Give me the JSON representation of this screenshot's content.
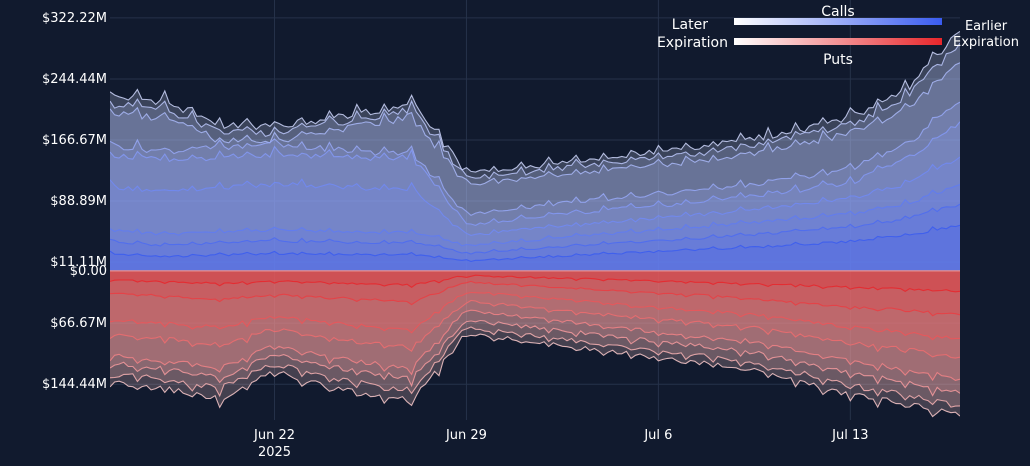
{
  "chart_data": {
    "type": "area",
    "colors": {
      "background": "#111a2e",
      "grid": "#26324a",
      "text": "#ffffff",
      "calls_late": "#ffffff",
      "calls_early": "#3a5cf0",
      "puts_late": "#ffffff",
      "puts_early": "#e8262b"
    },
    "legend": {
      "position": "top-right",
      "calls_title": "Calls",
      "puts_title": "Puts",
      "left_label": [
        "Later",
        "Expiration"
      ],
      "right_label": [
        "Earlier",
        "Expiration"
      ]
    },
    "y_ticks": [
      {
        "label": "$322.22M",
        "value": 322.22
      },
      {
        "label": "$244.44M",
        "value": 244.44
      },
      {
        "label": "$166.67M",
        "value": 166.67
      },
      {
        "label": "$88.89M",
        "value": 88.89
      },
      {
        "label": "$11.11M",
        "value": 11.11
      },
      {
        "label": "$0.00",
        "value": 0
      },
      {
        "label": "$66.67M",
        "value": -66.67
      },
      {
        "label": "$144.44M",
        "value": -144.44
      }
    ],
    "ylim": [
      -190,
      345
    ],
    "xlim": [
      "2025-06-16",
      "2025-07-17"
    ],
    "x_ticks": [
      {
        "label": "Jun 22",
        "sublabel": "2025",
        "date": "2025-06-22"
      },
      {
        "label": "Jun 29",
        "sublabel": "",
        "date": "2025-06-29"
      },
      {
        "label": "Jul 6",
        "sublabel": "",
        "date": "2025-07-06"
      },
      {
        "label": "Jul 13",
        "sublabel": "",
        "date": "2025-07-13"
      }
    ],
    "x": [
      "2025-06-16",
      "2025-06-18",
      "2025-06-20",
      "2025-06-22",
      "2025-06-24",
      "2025-06-26",
      "2025-06-27",
      "2025-06-29",
      "2025-07-01",
      "2025-07-03",
      "2025-07-05",
      "2025-07-07",
      "2025-07-09",
      "2025-07-11",
      "2025-07-13",
      "2025-07-15",
      "2025-07-17"
    ],
    "series": [
      {
        "group": "calls",
        "values": [
          222,
          216,
          186,
          183,
          194,
          206,
          214,
          125,
          131,
          140,
          148,
          155,
          165,
          178,
          195,
          228,
          305
        ]
      },
      {
        "group": "calls",
        "values": [
          212,
          206,
          176,
          175,
          187,
          198,
          205,
          118,
          124,
          133,
          140,
          147,
          157,
          170,
          186,
          218,
          290
        ]
      },
      {
        "group": "calls",
        "values": [
          200,
          195,
          166,
          165,
          178,
          190,
          196,
          110,
          116,
          124,
          131,
          138,
          147,
          160,
          175,
          205,
          265
        ]
      },
      {
        "group": "calls",
        "values": [
          160,
          152,
          157,
          160,
          155,
          150,
          150,
          72,
          80,
          88,
          95,
          100,
          108,
          118,
          130,
          160,
          215
        ]
      },
      {
        "group": "calls",
        "values": [
          148,
          140,
          145,
          148,
          145,
          142,
          145,
          58,
          66,
          74,
          80,
          86,
          93,
          102,
          112,
          140,
          190
        ]
      },
      {
        "group": "calls",
        "values": [
          108,
          100,
          106,
          110,
          108,
          104,
          105,
          45,
          52,
          58,
          64,
          70,
          76,
          84,
          92,
          110,
          145
        ]
      },
      {
        "group": "calls",
        "values": [
          52,
          46,
          50,
          52,
          50,
          48,
          50,
          32,
          38,
          44,
          49,
          54,
          60,
          66,
          72,
          85,
          110
        ]
      },
      {
        "group": "calls",
        "values": [
          38,
          32,
          36,
          38,
          37,
          35,
          37,
          22,
          27,
          32,
          36,
          40,
          45,
          50,
          55,
          66,
          85
        ]
      },
      {
        "group": "calls",
        "values": [
          22,
          18,
          20,
          22,
          21,
          20,
          21,
          12,
          16,
          20,
          23,
          26,
          29,
          33,
          37,
          45,
          58
        ]
      },
      {
        "group": "puts",
        "values": [
          -143,
          -150,
          -163,
          -128,
          -148,
          -160,
          -165,
          -80,
          -88,
          -97,
          -106,
          -115,
          -123,
          -140,
          -158,
          -170,
          -185
        ]
      },
      {
        "group": "puts",
        "values": [
          -132,
          -138,
          -150,
          -118,
          -136,
          -148,
          -152,
          -72,
          -80,
          -89,
          -97,
          -106,
          -114,
          -128,
          -146,
          -158,
          -172
        ]
      },
      {
        "group": "puts",
        "values": [
          -118,
          -124,
          -136,
          -105,
          -122,
          -132,
          -137,
          -62,
          -70,
          -78,
          -86,
          -94,
          -101,
          -114,
          -130,
          -142,
          -156
        ]
      },
      {
        "group": "puts",
        "values": [
          -108,
          -114,
          -124,
          -96,
          -110,
          -120,
          -124,
          -50,
          -58,
          -66,
          -74,
          -82,
          -88,
          -100,
          -115,
          -125,
          -138
        ]
      },
      {
        "group": "puts",
        "values": [
          -82,
          -86,
          -94,
          -74,
          -86,
          -94,
          -98,
          -38,
          -45,
          -52,
          -58,
          -64,
          -70,
          -80,
          -92,
          -100,
          -110
        ]
      },
      {
        "group": "puts",
        "values": [
          -62,
          -66,
          -72,
          -58,
          -66,
          -72,
          -75,
          -26,
          -32,
          -38,
          -44,
          -49,
          -54,
          -62,
          -72,
          -78,
          -86
        ]
      },
      {
        "group": "puts",
        "values": [
          -28,
          -32,
          -36,
          -30,
          -34,
          -37,
          -40,
          -14,
          -18,
          -22,
          -26,
          -30,
          -34,
          -40,
          -46,
          -50,
          -56
        ]
      },
      {
        "group": "puts",
        "values": [
          -12,
          -14,
          -16,
          -13,
          -15,
          -17,
          -18,
          -6,
          -8,
          -10,
          -12,
          -14,
          -16,
          -18,
          -21,
          -23,
          -26
        ]
      }
    ]
  }
}
